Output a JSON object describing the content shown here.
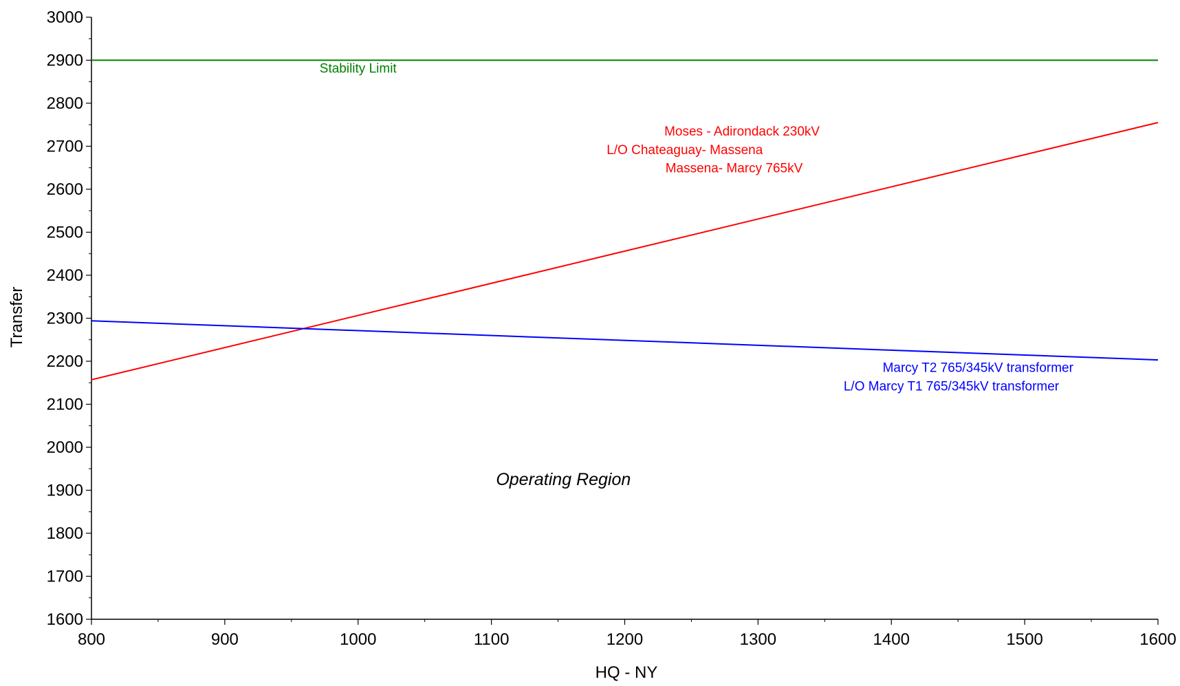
{
  "chart_data": {
    "type": "line",
    "title": "",
    "xlabel": "HQ - NY",
    "ylabel": "Transfer",
    "xlim": [
      800,
      1600
    ],
    "ylim": [
      1600,
      3000
    ],
    "x_ticks": [
      800,
      900,
      1000,
      1100,
      1200,
      1300,
      1400,
      1500,
      1600
    ],
    "x_tick_labels": [
      "800",
      "900",
      "1000",
      "1100",
      "1200",
      "1300",
      "1400",
      "1500",
      "1600"
    ],
    "y_ticks": [
      1600,
      1700,
      1800,
      1900,
      2000,
      2100,
      2200,
      2300,
      2400,
      2500,
      2600,
      2700,
      2800,
      2900,
      3000
    ],
    "y_tick_labels": [
      "1600",
      "1700",
      "1800",
      "1900",
      "2000",
      "2100",
      "2200",
      "2300",
      "2400",
      "2500",
      "2600",
      "2700",
      "2800",
      "2900",
      "3000"
    ],
    "grid": false,
    "series": [
      {
        "key": "stability",
        "color": "#008000",
        "points": [
          [
            800,
            2900
          ],
          [
            1600,
            2900
          ]
        ]
      },
      {
        "key": "moses",
        "color": "#ff0000",
        "points": [
          [
            800,
            2157
          ],
          [
            1600,
            2755
          ]
        ]
      },
      {
        "key": "marcy",
        "color": "#0000ff",
        "points": [
          [
            800,
            2294
          ],
          [
            1600,
            2203
          ]
        ]
      }
    ],
    "annotations": [
      {
        "key": "stability-label",
        "text": "Stability Limit",
        "color": "#008000",
        "x": 1000,
        "y": 2871,
        "anchor": "middle",
        "italic": false
      },
      {
        "key": "moses-line-1",
        "text": "Moses - Adirondack 230kV",
        "color": "#ff0000",
        "x": 1288,
        "y": 2725,
        "anchor": "middle",
        "italic": false
      },
      {
        "key": "moses-line-2",
        "text": "L/O  Chateaguay- Massena",
        "color": "#ff0000",
        "x": 1245,
        "y": 2682,
        "anchor": "middle",
        "italic": false
      },
      {
        "key": "moses-line-3",
        "text": "Massena- Marcy  765kV",
        "color": "#ff0000",
        "x": 1282,
        "y": 2639,
        "anchor": "middle",
        "italic": false
      },
      {
        "key": "marcy-line-1",
        "text": "Marcy T2 765/345kV transformer",
        "color": "#0000ff",
        "x": 1465,
        "y": 2175,
        "anchor": "middle",
        "italic": false
      },
      {
        "key": "marcy-line-2",
        "text": "L/O Marcy T1 765/345kV transformer",
        "color": "#0000ff",
        "x": 1445,
        "y": 2132,
        "anchor": "middle",
        "italic": false
      },
      {
        "key": "operating-region",
        "text": "Operating Region",
        "color": "#000000",
        "x": 1154,
        "y": 1912,
        "anchor": "middle",
        "italic": true
      }
    ]
  }
}
